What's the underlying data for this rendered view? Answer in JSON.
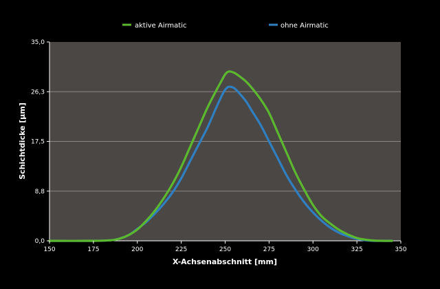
{
  "chart_data": {
    "type": "line",
    "title": "",
    "xlabel": "X-Achsenabschnitt [mm]",
    "ylabel": "Schichtdicke [µm]",
    "xlim": [
      150,
      350
    ],
    "ylim": [
      0,
      35
    ],
    "x_ticks": [
      150,
      175,
      200,
      225,
      250,
      275,
      300,
      325,
      350
    ],
    "x_tick_labels": [
      "150",
      "175",
      "200",
      "225",
      "250",
      "275",
      "300",
      "325",
      "350"
    ],
    "y_ticks": [
      0,
      8.75,
      17.5,
      26.25,
      35
    ],
    "y_tick_labels": [
      "0,0",
      "8,8",
      "17,5",
      "26,3",
      "35,0"
    ],
    "grid": true,
    "legend_position": "top-center",
    "plot_background": "#4a4745",
    "page_background": "#000000",
    "series": [
      {
        "name": "aktive Airmatic",
        "color": "#5cb82e",
        "x": [
          150,
          175,
          185,
          190,
          195,
          200,
          205,
          210,
          215,
          220,
          225,
          230,
          235,
          240,
          245,
          248,
          250,
          252,
          255,
          258,
          262,
          265,
          270,
          275,
          280,
          285,
          290,
          295,
          300,
          305,
          310,
          315,
          320,
          325,
          330,
          335,
          340,
          345
        ],
        "y": [
          0,
          0,
          0.1,
          0.4,
          1.0,
          2.0,
          3.5,
          5.3,
          7.5,
          10.0,
          13.0,
          16.5,
          20.0,
          23.5,
          26.5,
          28.2,
          29.3,
          29.8,
          29.6,
          29.0,
          28.0,
          27.0,
          25.0,
          22.5,
          19.0,
          15.5,
          12.0,
          9.0,
          6.3,
          4.3,
          3.0,
          1.9,
          1.1,
          0.5,
          0.2,
          0.05,
          0,
          0
        ]
      },
      {
        "name": "ohne Airmatic",
        "color": "#2f7fc1",
        "x": [
          150,
          175,
          185,
          190,
          195,
          200,
          205,
          210,
          215,
          220,
          225,
          230,
          235,
          240,
          245,
          248,
          250,
          252,
          255,
          258,
          262,
          265,
          270,
          275,
          280,
          285,
          290,
          295,
          300,
          305,
          310,
          315,
          320,
          325,
          330,
          335,
          340,
          345
        ],
        "y": [
          0,
          0,
          0.1,
          0.4,
          1.0,
          2.1,
          3.3,
          4.8,
          6.5,
          8.5,
          11.0,
          14.0,
          17.0,
          20.0,
          23.5,
          25.5,
          26.6,
          27.1,
          26.9,
          26.0,
          24.5,
          23.0,
          20.5,
          17.5,
          14.5,
          11.5,
          9.0,
          6.8,
          5.0,
          3.5,
          2.3,
          1.4,
          0.8,
          0.35,
          0.1,
          0,
          0,
          0
        ]
      }
    ]
  }
}
